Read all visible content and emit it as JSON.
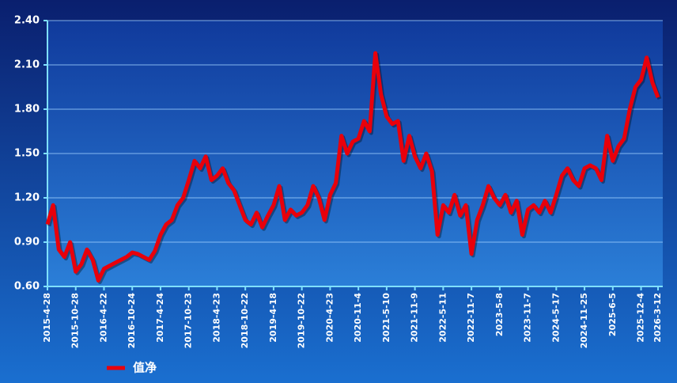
{
  "chart_data": {
    "type": "line",
    "categories": [
      "2015-4-28",
      null,
      null,
      null,
      null,
      "2015-10-28",
      null,
      null,
      null,
      null,
      "2016-4-22",
      null,
      null,
      null,
      null,
      "2016-10-24",
      null,
      null,
      null,
      null,
      "2017-4-24",
      null,
      null,
      null,
      null,
      "2017-10-23",
      null,
      null,
      null,
      null,
      "2018-4-23",
      null,
      null,
      null,
      null,
      "2018-10-22",
      null,
      null,
      null,
      null,
      "2019-4-18",
      null,
      null,
      null,
      null,
      "2019-10-22",
      null,
      null,
      null,
      null,
      "2020-4-23",
      null,
      null,
      null,
      null,
      "2020-11-4",
      null,
      null,
      null,
      null,
      "2021-5-10",
      null,
      null,
      null,
      null,
      "2021-11-9",
      null,
      null,
      null,
      null,
      "2022-5-11",
      null,
      null,
      null,
      null,
      "2022-11-7",
      null,
      null,
      null,
      null,
      "2023-5-8",
      null,
      null,
      null,
      null,
      "2023-11-7",
      null,
      null,
      null,
      null,
      "2024-5-17",
      null,
      null,
      null,
      null,
      "2024-11-25",
      null,
      null,
      null,
      null,
      "2025-6-5",
      null,
      null,
      null,
      null,
      "2025-12-4",
      null,
      null,
      "2026-3-12"
    ],
    "series": [
      {
        "name": "值净",
        "color": "#e8000b",
        "values": [
          1.02,
          1.15,
          0.85,
          0.8,
          0.9,
          0.7,
          0.75,
          0.85,
          0.78,
          0.64,
          0.72,
          0.74,
          0.76,
          0.78,
          0.8,
          0.83,
          0.82,
          0.8,
          0.78,
          0.84,
          0.95,
          1.02,
          1.05,
          1.15,
          1.2,
          1.32,
          1.45,
          1.4,
          1.48,
          1.32,
          1.35,
          1.4,
          1.3,
          1.25,
          1.15,
          1.05,
          1.02,
          1.1,
          1.0,
          1.08,
          1.15,
          1.28,
          1.05,
          1.12,
          1.08,
          1.1,
          1.15,
          1.28,
          1.2,
          1.05,
          1.22,
          1.3,
          1.62,
          1.5,
          1.58,
          1.6,
          1.72,
          1.65,
          2.18,
          1.9,
          1.75,
          1.7,
          1.72,
          1.45,
          1.62,
          1.48,
          1.4,
          1.5,
          1.38,
          0.95,
          1.15,
          1.1,
          1.22,
          1.08,
          1.15,
          0.82,
          1.05,
          1.15,
          1.28,
          1.2,
          1.15,
          1.22,
          1.1,
          1.18,
          0.95,
          1.12,
          1.15,
          1.1,
          1.18,
          1.1,
          1.22,
          1.35,
          1.4,
          1.32,
          1.28,
          1.4,
          1.42,
          1.4,
          1.32,
          1.62,
          1.45,
          1.55,
          1.6,
          1.8,
          1.95,
          2.0,
          2.15,
          1.98,
          1.88
        ]
      }
    ],
    "ylim": [
      0.6,
      2.4
    ],
    "yticks": [
      {
        "value": 0.6,
        "label": "0.60"
      },
      {
        "value": 0.9,
        "label": "0.90"
      },
      {
        "value": 1.2,
        "label": "1.20"
      },
      {
        "value": 1.5,
        "label": "1.50"
      },
      {
        "value": 1.8,
        "label": "1.80"
      },
      {
        "value": 2.1,
        "label": "2.10"
      },
      {
        "value": 2.4,
        "label": "2.40"
      }
    ],
    "grid": true,
    "legend": "bottom-left"
  }
}
